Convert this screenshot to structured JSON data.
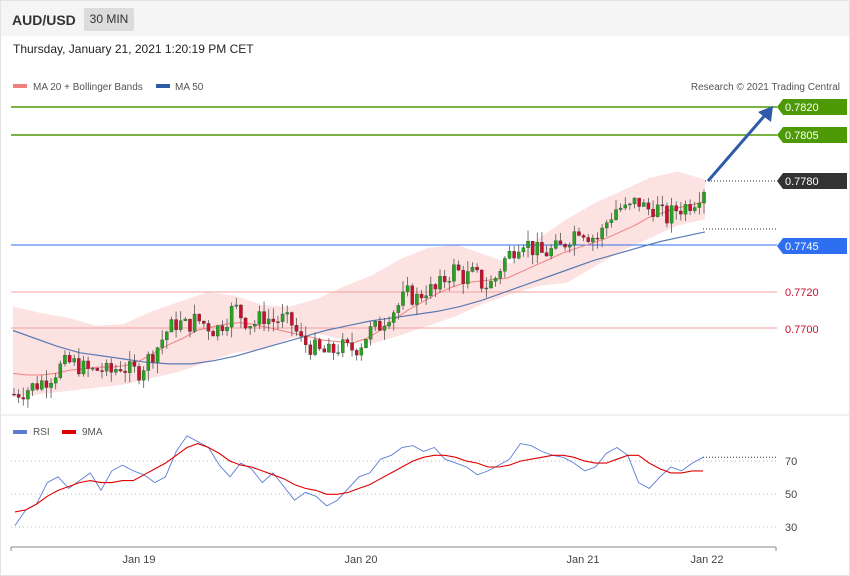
{
  "header": {
    "symbol": "AUD/USD",
    "timeframe": "30 MIN",
    "datetime": "Thursday, January 21, 2021 1:20:19 PM CET"
  },
  "legend": {
    "ma20_label": "MA 20 + Bollinger Bands",
    "ma50_label": "MA 50",
    "copyright": "Research © 2021 Trading Central"
  },
  "rsi_legend": {
    "rsi_label": "RSI",
    "ma_label": "9MA"
  },
  "colors": {
    "bull": "#27a321",
    "bear": "#c8102e",
    "bollinger": "#fddddd",
    "ma20": "#f08080",
    "ma50": "#5b7bb5",
    "target": "#4e9a06",
    "pivot": "#2e6ff2",
    "support": "#e07070",
    "arrow": "#2f5aa8"
  },
  "chart_data": [
    {
      "type": "candlestick",
      "ylim": [
        0.764,
        0.7835
      ],
      "levels": [
        {
          "value": 0.782,
          "label": "0.7820",
          "kind": "target"
        },
        {
          "value": 0.7805,
          "label": "0.7805",
          "kind": "target"
        },
        {
          "value": 0.778,
          "label": "0.7780",
          "kind": "last"
        },
        {
          "value": 0.7745,
          "label": "0.7745",
          "kind": "pivot"
        },
        {
          "value": 0.772,
          "label": "0.7720",
          "kind": "support"
        },
        {
          "value": 0.77,
          "label": "0.7700",
          "kind": "support"
        }
      ],
      "x_tick_labels": [
        "Jan 19",
        "Jan 20",
        "Jan 21",
        "Jan 22"
      ],
      "close_path": [
        0.765,
        0.7652,
        0.7655,
        0.7658,
        0.7662,
        0.7668,
        0.767,
        0.7667,
        0.7664,
        0.7666,
        0.7663,
        0.7668,
        0.7665,
        0.7664,
        0.7672,
        0.768,
        0.769,
        0.7695,
        0.7693,
        0.7697,
        0.7694,
        0.769,
        0.7696,
        0.7705,
        0.7697,
        0.7694,
        0.7699,
        0.7696,
        0.7697,
        0.7694,
        0.7683,
        0.768,
        0.7676,
        0.7676,
        0.768,
        0.7678,
        0.768,
        0.7689,
        0.7692,
        0.77,
        0.7705,
        0.7713,
        0.771,
        0.7716,
        0.7715,
        0.7723,
        0.7729,
        0.7723,
        0.7726,
        0.7718,
        0.772,
        0.7733,
        0.774,
        0.7748,
        0.7742,
        0.7738,
        0.774,
        0.7742,
        0.7749,
        0.7755,
        0.775,
        0.7748,
        0.776,
        0.7768,
        0.7765,
        0.7772,
        0.7766,
        0.7768,
        0.776,
        0.7766,
        0.7768,
        0.7772,
        0.778
      ],
      "ma20_path": [
        0.7663,
        0.7662,
        0.7662,
        0.7663,
        0.7665,
        0.7666,
        0.7667,
        0.7667,
        0.7668,
        0.7671,
        0.7676,
        0.7681,
        0.7685,
        0.769,
        0.7692,
        0.7694,
        0.7695,
        0.7694,
        0.7692,
        0.769,
        0.7688,
        0.7686,
        0.7684,
        0.7683,
        0.7682,
        0.7685,
        0.769,
        0.7697,
        0.7703,
        0.7708,
        0.7713,
        0.7717,
        0.772,
        0.7721,
        0.7722,
        0.7723,
        0.7727,
        0.7731,
        0.7735,
        0.7739,
        0.7742,
        0.7745,
        0.7748,
        0.7752,
        0.7756,
        0.7761,
        0.7764,
        0.7767,
        0.7769,
        0.7771
      ],
      "ma50_path": [
        0.769,
        0.7685,
        0.768,
        0.7676,
        0.7674,
        0.7672,
        0.767,
        0.7669,
        0.7669,
        0.7671,
        0.7674,
        0.7678,
        0.7682,
        0.7686,
        0.769,
        0.7693,
        0.7696,
        0.7698,
        0.77,
        0.7702,
        0.7705,
        0.7709,
        0.7714,
        0.7719,
        0.7724,
        0.7729,
        0.7734,
        0.7738,
        0.7742,
        0.7746,
        0.7749,
        0.7752
      ],
      "bollinger_upper": [
        0.7705,
        0.7701,
        0.7698,
        0.7693,
        0.7694,
        0.7702,
        0.7708,
        0.7714,
        0.7712,
        0.7706,
        0.7705,
        0.771,
        0.7718,
        0.7725,
        0.7735,
        0.7742,
        0.7744,
        0.7738,
        0.7732,
        0.7748,
        0.776,
        0.777,
        0.7778,
        0.7786,
        0.779,
        0.7785
      ],
      "bollinger_lower": [
        0.7648,
        0.765,
        0.7652,
        0.7654,
        0.7656,
        0.766,
        0.7664,
        0.767,
        0.7676,
        0.7678,
        0.7685,
        0.7688,
        0.7684,
        0.7682,
        0.7687,
        0.7693,
        0.7699,
        0.7707,
        0.7713,
        0.7718,
        0.772,
        0.773,
        0.774,
        0.7748,
        0.7756,
        0.776
      ]
    },
    {
      "type": "line",
      "title": "RSI",
      "ylim": [
        20,
        80
      ],
      "y_ticks": [
        70,
        50,
        30
      ],
      "series": [
        {
          "name": "RSI",
          "values": [
            30,
            38,
            41,
            52,
            55,
            49,
            53,
            57,
            48,
            58,
            61,
            58,
            56,
            52,
            55,
            68,
            76,
            73,
            70,
            61,
            55,
            62,
            59,
            52,
            57,
            50,
            43,
            47,
            45,
            40,
            43,
            49,
            55,
            57,
            64,
            66,
            70,
            71,
            68,
            70,
            64,
            62,
            60,
            56,
            58,
            61,
            64,
            72,
            71,
            68,
            66,
            65,
            62,
            58,
            60,
            67,
            70,
            66,
            52,
            49,
            55,
            60,
            58,
            62,
            65
          ]
        },
        {
          "name": "9MA",
          "values": [
            37,
            38,
            41,
            45,
            48,
            50,
            52,
            53,
            52,
            52,
            53,
            53,
            56,
            59,
            62,
            66,
            70,
            72,
            70,
            67,
            63,
            61,
            60,
            58,
            56,
            54,
            51,
            49,
            48,
            46,
            46,
            47,
            49,
            51,
            54,
            57,
            60,
            63,
            65,
            66,
            66,
            65,
            63,
            62,
            60,
            60,
            61,
            63,
            64,
            65,
            66,
            66,
            65,
            63,
            62,
            62,
            64,
            66,
            66,
            62,
            59,
            57,
            57,
            58,
            58
          ]
        }
      ]
    }
  ],
  "price_tags": {
    "t1": "0.7820",
    "t2": "0.7805",
    "last": "0.7780",
    "pivot": "0.7745",
    "s1": "0.7720",
    "s2": "0.7700"
  },
  "rsi_ticks": {
    "r70": "70",
    "r50": "50",
    "r30": "30"
  },
  "x_ticks": {
    "d1": "Jan 19",
    "d2": "Jan 20",
    "d3": "Jan 21",
    "d4": "Jan 22"
  }
}
